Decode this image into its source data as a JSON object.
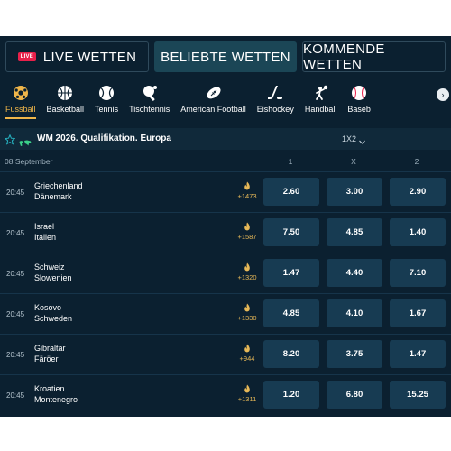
{
  "top_tabs": {
    "live_badge": "LIVE",
    "live": "LIVE WETTEN",
    "popular": "BELIEBTE WETTEN",
    "upcoming": "KOMMENDE WETTEN"
  },
  "sports": [
    {
      "label": "Fussball",
      "icon": "soccer-ball-icon",
      "active": true
    },
    {
      "label": "Basketball",
      "icon": "basketball-icon",
      "active": false
    },
    {
      "label": "Tennis",
      "icon": "tennis-ball-icon",
      "active": false
    },
    {
      "label": "Tischtennis",
      "icon": "table-tennis-icon",
      "active": false
    },
    {
      "label": "American Football",
      "icon": "american-football-icon",
      "active": false
    },
    {
      "label": "Eishockey",
      "icon": "ice-hockey-icon",
      "active": false
    },
    {
      "label": "Handball",
      "icon": "handball-icon",
      "active": false
    },
    {
      "label": "Baseb",
      "icon": "baseball-icon",
      "active": false
    }
  ],
  "league": {
    "title": "WM 2026. Qualifikation. Europa",
    "market": "1X2"
  },
  "date_header": {
    "date": "08 September",
    "col1": "1",
    "colx": "X",
    "col2": "2"
  },
  "matches": [
    {
      "time": "20:45",
      "home": "Griechenland",
      "away": "Dänemark",
      "count": "+1473",
      "o1": "2.60",
      "ox": "3.00",
      "o2": "2.90"
    },
    {
      "time": "20:45",
      "home": "Israel",
      "away": "Italien",
      "count": "+1587",
      "o1": "7.50",
      "ox": "4.85",
      "o2": "1.40"
    },
    {
      "time": "20:45",
      "home": "Schweiz",
      "away": "Slowenien",
      "count": "+1320",
      "o1": "1.47",
      "ox": "4.40",
      "o2": "7.10"
    },
    {
      "time": "20:45",
      "home": "Kosovo",
      "away": "Schweden",
      "count": "+1330",
      "o1": "4.85",
      "ox": "4.10",
      "o2": "1.67"
    },
    {
      "time": "20:45",
      "home": "Gibraltar",
      "away": "Färöer",
      "count": "+944",
      "o1": "8.20",
      "ox": "3.75",
      "o2": "1.47"
    },
    {
      "time": "20:45",
      "home": "Kroatien",
      "away": "Montenegro",
      "count": "+1311",
      "o1": "1.20",
      "ox": "6.80",
      "o2": "15.25"
    }
  ],
  "colors": {
    "background": "#0b2030",
    "accent": "#f0b64a",
    "live_red": "#e8204a",
    "odd_button": "#173b52"
  }
}
